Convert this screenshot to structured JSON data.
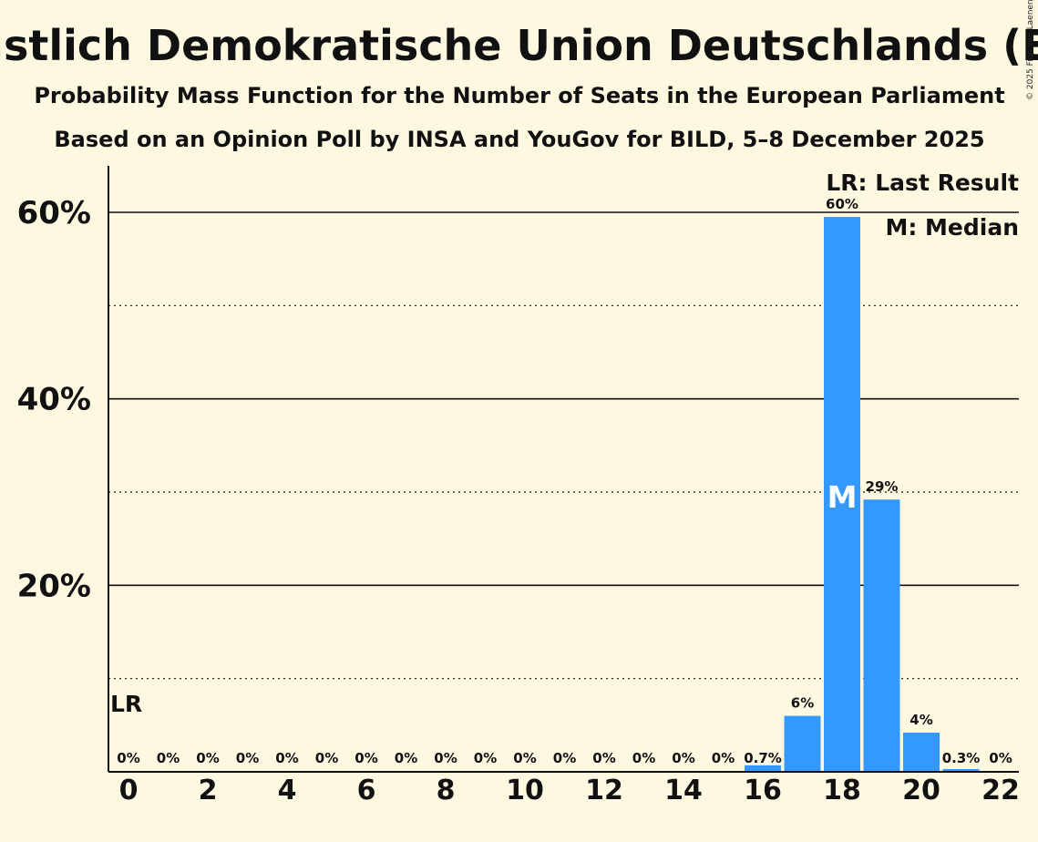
{
  "chart_data": {
    "type": "bar",
    "title": "Christlich Demokratische Union Deutschlands (EPP)",
    "subtitle1": "Probability Mass Function for the Number of Seats in the European Parliament",
    "subtitle2": "Based on an Opinion Poll by INSA and YouGov for BILD, 5–8 December 2025",
    "copyright": "© 2025 Filip van Laenen",
    "x": [
      0,
      1,
      2,
      3,
      4,
      5,
      6,
      7,
      8,
      9,
      10,
      11,
      12,
      13,
      14,
      15,
      16,
      17,
      18,
      19,
      20,
      21,
      22
    ],
    "values": [
      0,
      0,
      0,
      0,
      0,
      0,
      0,
      0,
      0,
      0,
      0,
      0,
      0,
      0,
      0,
      0,
      0.7,
      6,
      59.5,
      29.2,
      4.2,
      0.3,
      0
    ],
    "labels": [
      "0%",
      "0%",
      "0%",
      "0%",
      "0%",
      "0%",
      "0%",
      "0%",
      "0%",
      "0%",
      "0%",
      "0%",
      "0%",
      "0%",
      "0%",
      "0%",
      "0.7%",
      "6%",
      "60%",
      "29%",
      "4%",
      "0.3%",
      "0%"
    ],
    "xticks": [
      0,
      2,
      4,
      6,
      8,
      10,
      12,
      14,
      16,
      18,
      20,
      22
    ],
    "yticks_solid": [
      20,
      40,
      60
    ],
    "ytick_labels": [
      "20%",
      "40%",
      "60%"
    ],
    "yticks_dotted": [
      10,
      30,
      50
    ],
    "ylim": [
      0,
      65
    ],
    "median_seat": 18,
    "median_marker": "M",
    "last_result_seat": 0,
    "last_result_marker": "LR",
    "legend": [
      "LR: Last Result",
      "M: Median"
    ],
    "bar_color": "#3399ff"
  }
}
